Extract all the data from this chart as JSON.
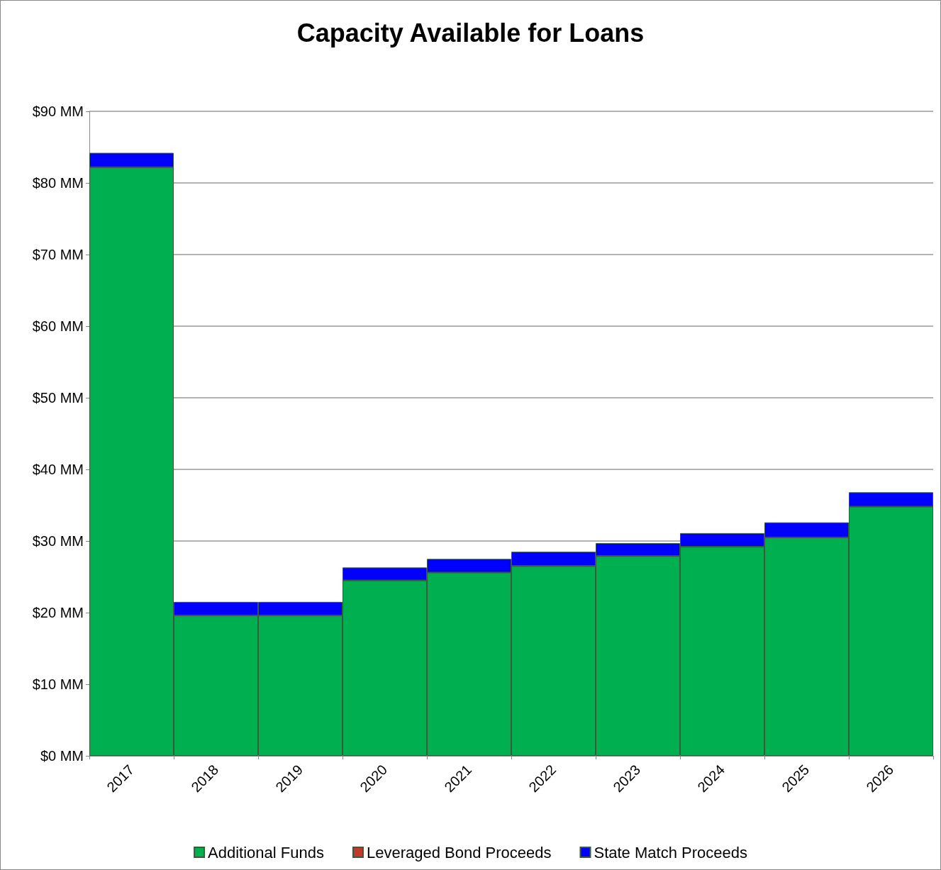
{
  "chart_data": {
    "type": "bar",
    "title": "Capacity Available for Loans",
    "categories": [
      "2017",
      "2018",
      "2019",
      "2020",
      "2021",
      "2022",
      "2023",
      "2024",
      "2025",
      "2026"
    ],
    "series": [
      {
        "name": "Additional Funds",
        "color": "#00b050",
        "values": [
          82.2,
          19.6,
          19.6,
          24.5,
          25.6,
          26.5,
          27.9,
          29.2,
          30.5,
          34.8
        ]
      },
      {
        "name": "Leveraged Bond Proceeds",
        "color": "#c0392b",
        "values": [
          0,
          0,
          0,
          0,
          0,
          0,
          0,
          0,
          0,
          0
        ]
      },
      {
        "name": "State Match Proceeds",
        "color": "#0000ff",
        "values": [
          2.0,
          1.9,
          1.9,
          1.8,
          1.9,
          2.0,
          1.8,
          1.9,
          2.1,
          2.0
        ]
      }
    ],
    "stacked": true,
    "ylim": [
      0,
      90
    ],
    "yticks": [
      {
        "value": 0,
        "label": "$0 MM"
      },
      {
        "value": 10,
        "label": "$10 MM"
      },
      {
        "value": 20,
        "label": "$20 MM"
      },
      {
        "value": 30,
        "label": "$30 MM"
      },
      {
        "value": 40,
        "label": "$40 MM"
      },
      {
        "value": 50,
        "label": "$50 MM"
      },
      {
        "value": 60,
        "label": "$60 MM"
      },
      {
        "value": 70,
        "label": "$70 MM"
      },
      {
        "value": 80,
        "label": "$80 MM"
      },
      {
        "value": 90,
        "label": "$90 MM"
      }
    ],
    "grid": "y",
    "legend": "bottom"
  }
}
